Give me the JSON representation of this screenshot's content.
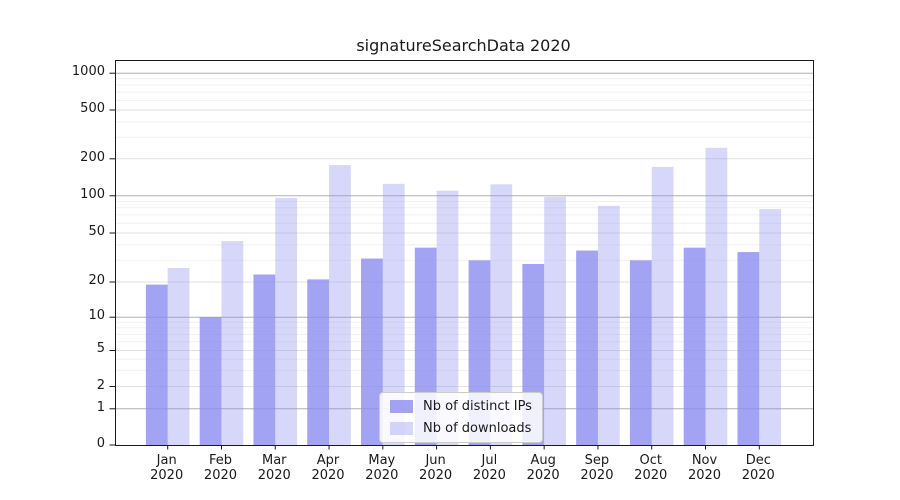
{
  "chart_data": {
    "type": "bar",
    "title": "signatureSearchData 2020",
    "categories": [
      {
        "month": "Jan",
        "year": "2020"
      },
      {
        "month": "Feb",
        "year": "2020"
      },
      {
        "month": "Mar",
        "year": "2020"
      },
      {
        "month": "Apr",
        "year": "2020"
      },
      {
        "month": "May",
        "year": "2020"
      },
      {
        "month": "Jun",
        "year": "2020"
      },
      {
        "month": "Jul",
        "year": "2020"
      },
      {
        "month": "Aug",
        "year": "2020"
      },
      {
        "month": "Sep",
        "year": "2020"
      },
      {
        "month": "Oct",
        "year": "2020"
      },
      {
        "month": "Nov",
        "year": "2020"
      },
      {
        "month": "Dec",
        "year": "2020"
      }
    ],
    "series": [
      {
        "name": "Nb of distinct IPs",
        "base_color": "#8c8cf0",
        "opacity": 0.8,
        "values": [
          19,
          10,
          23,
          21,
          31,
          38,
          30,
          28,
          36,
          30,
          38,
          35
        ]
      },
      {
        "name": "Nb of downloads",
        "base_color": "#8c8cf0",
        "opacity": 0.35,
        "values": [
          26,
          43,
          96,
          178,
          125,
          110,
          124,
          98,
          83,
          172,
          246,
          78
        ]
      }
    ],
    "y_axis": {
      "scale": "symlog-like",
      "ticks": [
        0,
        1,
        2,
        5,
        10,
        20,
        50,
        100,
        200,
        500,
        1000
      ],
      "anchors": [
        {
          "v": 0,
          "f": 0
        },
        {
          "v": 1,
          "f": 0.0943
        },
        {
          "v": 2,
          "f": 0.1523
        },
        {
          "v": 5,
          "f": 0.2461
        },
        {
          "v": 10,
          "f": 0.3328
        },
        {
          "v": 20,
          "f": 0.4245
        },
        {
          "v": 50,
          "f": 0.5521
        },
        {
          "v": 100,
          "f": 0.649
        },
        {
          "v": 200,
          "f": 0.7453
        },
        {
          "v": 500,
          "f": 0.8724
        },
        {
          "v": 1000,
          "f": 0.9682
        }
      ],
      "minor_gridlines": [
        3,
        4,
        6,
        7,
        8,
        9,
        30,
        40,
        60,
        70,
        80,
        90,
        300,
        400,
        600,
        700,
        800,
        900
      ]
    },
    "grid": {
      "enabled": true,
      "major_color": "#b0b0b0",
      "labeled_color": "#e2e2e2",
      "minor_color": "#f1f1f1"
    },
    "axis_color": "#1a1a1a",
    "text_color": "#1a1a1a",
    "legend": {
      "position": "lower center",
      "border_color": "#cccccc"
    }
  }
}
